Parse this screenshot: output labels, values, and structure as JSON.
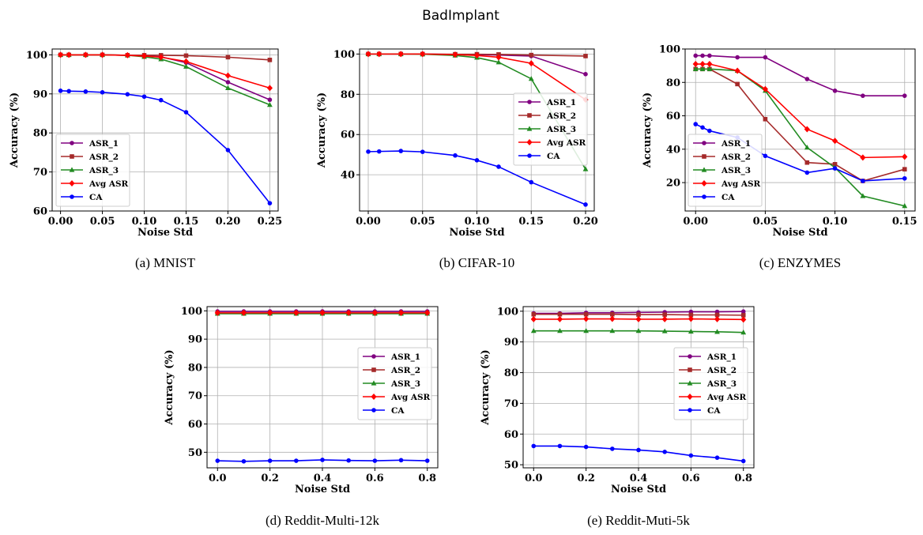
{
  "suptitle": "BadImplant",
  "colors": {
    "ASR_1": "#800080",
    "ASR_2": "#a52a2a",
    "ASR_3": "#228b22",
    "Avg ASR": "#ff0000",
    "CA": "#0000ff"
  },
  "markers": {
    "ASR_1": "circle",
    "ASR_2": "square",
    "ASR_3": "triangle",
    "Avg ASR": "diamond",
    "CA": "circle"
  },
  "chart_data": [
    {
      "type": "line",
      "caption": "(a) MNIST",
      "xlabel": "Noise Std",
      "ylabel": "Accuracy (%)",
      "xlim": [
        -0.01,
        0.26
      ],
      "ylim": [
        60,
        101.5
      ],
      "xticks": [
        0.0,
        0.05,
        0.1,
        0.15,
        0.2,
        0.25
      ],
      "xtick_labels": [
        "0.00",
        "0.05",
        "0.10",
        "0.15",
        "0.20",
        "0.25"
      ],
      "yticks": [
        60,
        70,
        80,
        90,
        100
      ],
      "ytick_labels": [
        "60",
        "70",
        "80",
        "90",
        "100"
      ],
      "legend_position": "lower-left",
      "grid": true,
      "x": [
        0.0,
        0.01,
        0.03,
        0.05,
        0.08,
        0.1,
        0.12,
        0.15,
        0.2,
        0.25
      ],
      "series": [
        {
          "name": "ASR_1",
          "values": [
            100,
            100,
            100,
            100,
            99.9,
            99.8,
            99.5,
            98.0,
            93.0,
            88.5
          ]
        },
        {
          "name": "ASR_2",
          "values": [
            100,
            100,
            100,
            100,
            99.9,
            99.9,
            99.9,
            99.8,
            99.4,
            98.7
          ]
        },
        {
          "name": "ASR_3",
          "values": [
            100,
            100,
            100,
            100,
            99.9,
            99.5,
            98.9,
            97.0,
            91.5,
            87.2
          ]
        },
        {
          "name": "Avg ASR",
          "values": [
            100,
            100,
            100,
            100,
            99.9,
            99.7,
            99.4,
            98.3,
            94.7,
            91.5
          ]
        },
        {
          "name": "CA",
          "values": [
            90.8,
            90.7,
            90.6,
            90.4,
            89.9,
            89.3,
            88.4,
            85.3,
            75.6,
            62.0
          ]
        }
      ]
    },
    {
      "type": "line",
      "caption": "(b) CIFAR-10",
      "xlabel": "Noise Std",
      "ylabel": "Accuracy (%)",
      "xlim": [
        -0.008,
        0.208
      ],
      "ylim": [
        22,
        102.5
      ],
      "xticks": [
        0.0,
        0.05,
        0.1,
        0.15,
        0.2
      ],
      "xtick_labels": [
        "0.00",
        "0.05",
        "0.10",
        "0.15",
        "0.20"
      ],
      "yticks": [
        40,
        60,
        80,
        100
      ],
      "ytick_labels": [
        "40",
        "60",
        "80",
        "100"
      ],
      "legend_position": "center-right",
      "grid": true,
      "x": [
        0.0,
        0.01,
        0.03,
        0.05,
        0.08,
        0.1,
        0.12,
        0.15,
        0.2
      ],
      "series": [
        {
          "name": "ASR_1",
          "values": [
            100,
            100,
            100,
            100,
            99.8,
            99.7,
            99.5,
            99.0,
            90.0
          ]
        },
        {
          "name": "ASR_2",
          "values": [
            100,
            100,
            100,
            100,
            99.9,
            99.9,
            99.8,
            99.5,
            99.0
          ]
        },
        {
          "name": "ASR_3",
          "values": [
            100,
            100,
            100,
            99.9,
            99.3,
            98.2,
            95.9,
            87.7,
            42.8
          ]
        },
        {
          "name": "Avg ASR",
          "values": [
            100,
            100,
            100,
            100,
            99.7,
            99.3,
            98.4,
            95.4,
            77.3
          ]
        },
        {
          "name": "CA",
          "values": [
            51.5,
            51.6,
            51.8,
            51.4,
            49.6,
            47.2,
            44.0,
            36.3,
            25.2
          ]
        }
      ]
    },
    {
      "type": "line",
      "caption": "(c) ENZYMES",
      "xlabel": "Noise Std",
      "ylabel": "Accuracy (%)",
      "xlim": [
        -0.0075,
        0.1575
      ],
      "ylim": [
        3,
        100
      ],
      "xticks": [
        0.0,
        0.05,
        0.1,
        0.15
      ],
      "xtick_labels": [
        "0.00",
        "0.05",
        "0.10",
        "0.15"
      ],
      "yticks": [
        20,
        40,
        60,
        80,
        100
      ],
      "ytick_labels": [
        "20",
        "40",
        "60",
        "80",
        "100"
      ],
      "legend_position": "lower-left",
      "grid": true,
      "x": [
        0.0,
        0.005,
        0.01,
        0.03,
        0.05,
        0.08,
        0.1,
        0.12,
        0.15
      ],
      "series": [
        {
          "name": "ASR_1",
          "values": [
            96,
            96,
            96,
            95,
            95,
            82,
            75,
            72,
            72
          ]
        },
        {
          "name": "ASR_2",
          "values": [
            88,
            88,
            88,
            79,
            58,
            32,
            31,
            21,
            28
          ]
        },
        {
          "name": "ASR_3",
          "values": [
            88,
            88,
            88,
            87,
            75,
            41,
            29,
            12,
            6
          ]
        },
        {
          "name": "Avg ASR",
          "values": [
            91,
            91,
            91,
            87,
            76,
            52,
            45,
            35,
            35.5
          ]
        },
        {
          "name": "CA",
          "values": [
            55,
            53,
            51,
            47,
            36,
            26,
            28.5,
            21,
            22.5
          ]
        }
      ]
    },
    {
      "type": "line",
      "caption": "(d) Reddit-Multi-12k",
      "xlabel": "Noise Std",
      "ylabel": "Accuracy (%)",
      "xlim": [
        -0.04,
        0.84
      ],
      "ylim": [
        44.5,
        101.5
      ],
      "xticks": [
        0.0,
        0.2,
        0.4,
        0.6,
        0.8
      ],
      "xtick_labels": [
        "0.0",
        "0.2",
        "0.4",
        "0.6",
        "0.8"
      ],
      "yticks": [
        50,
        60,
        70,
        80,
        90,
        100
      ],
      "ytick_labels": [
        "50",
        "60",
        "70",
        "80",
        "90",
        "100"
      ],
      "legend_position": "center-right",
      "grid": true,
      "x": [
        0.0,
        0.1,
        0.2,
        0.3,
        0.4,
        0.5,
        0.6,
        0.7,
        0.8
      ],
      "series": [
        {
          "name": "ASR_1",
          "values": [
            99.8,
            99.8,
            99.8,
            99.8,
            99.8,
            99.8,
            99.8,
            99.8,
            99.8
          ]
        },
        {
          "name": "ASR_2",
          "values": [
            99.2,
            99.2,
            99.2,
            99.2,
            99.2,
            99.2,
            99.2,
            99.2,
            99.2
          ]
        },
        {
          "name": "ASR_3",
          "values": [
            99.0,
            99.0,
            99.0,
            99.0,
            99.0,
            99.0,
            99.0,
            99.0,
            99.0
          ]
        },
        {
          "name": "Avg ASR",
          "values": [
            99.3,
            99.3,
            99.3,
            99.3,
            99.3,
            99.3,
            99.3,
            99.3,
            99.3
          ]
        },
        {
          "name": "CA",
          "values": [
            47.0,
            46.8,
            47.0,
            47.0,
            47.3,
            47.1,
            47.0,
            47.2,
            47.0
          ]
        }
      ]
    },
    {
      "type": "line",
      "caption": "(e) Reddit-Muti-5k",
      "xlabel": "Noise Std",
      "ylabel": "Accuracy (%)",
      "xlim": [
        -0.04,
        0.84
      ],
      "ylim": [
        49,
        101.5
      ],
      "xticks": [
        0.0,
        0.2,
        0.4,
        0.6,
        0.8
      ],
      "xtick_labels": [
        "0.0",
        "0.2",
        "0.4",
        "0.6",
        "0.8"
      ],
      "yticks": [
        50,
        60,
        70,
        80,
        90,
        100
      ],
      "ytick_labels": [
        "50",
        "60",
        "70",
        "80",
        "90",
        "100"
      ],
      "legend_position": "center-right",
      "grid": true,
      "x": [
        0.0,
        0.1,
        0.2,
        0.3,
        0.4,
        0.5,
        0.6,
        0.7,
        0.8
      ],
      "series": [
        {
          "name": "ASR_1",
          "values": [
            99.3,
            99.3,
            99.5,
            99.5,
            99.6,
            99.7,
            99.8,
            99.8,
            99.9
          ]
        },
        {
          "name": "ASR_2",
          "values": [
            99.0,
            99.0,
            99.0,
            99.0,
            98.9,
            98.9,
            98.8,
            98.8,
            98.7
          ]
        },
        {
          "name": "ASR_3",
          "values": [
            93.6,
            93.6,
            93.6,
            93.6,
            93.6,
            93.5,
            93.4,
            93.3,
            93.1
          ]
        },
        {
          "name": "Avg ASR",
          "values": [
            97.4,
            97.4,
            97.5,
            97.5,
            97.4,
            97.4,
            97.5,
            97.4,
            97.3
          ]
        },
        {
          "name": "CA",
          "values": [
            56.1,
            56.1,
            55.8,
            55.2,
            54.8,
            54.2,
            53.0,
            52.3,
            51.2
          ]
        }
      ]
    }
  ]
}
